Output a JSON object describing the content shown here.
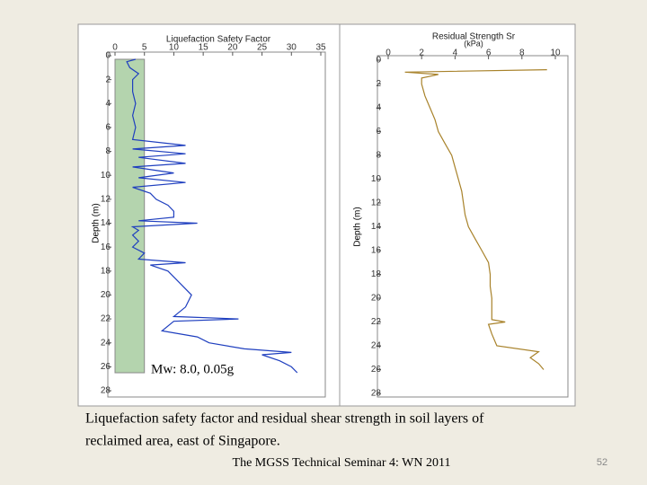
{
  "chart_data": [
    {
      "type": "line",
      "title": "Liquefaction Safety Factor",
      "y_label": "Depth (m)",
      "annotation": "Mw: 8.0, 0.05g",
      "color": "#1f3fbf",
      "band_x": [
        0,
        5
      ],
      "band_depth": [
        0.3,
        26.5
      ],
      "band_color": "#b4d4ae",
      "xlim": [
        0,
        35
      ],
      "xticks": [
        0,
        5,
        10,
        15,
        20,
        25,
        30,
        35
      ],
      "ylim": [
        0,
        28
      ],
      "yticks": [
        0,
        2,
        4,
        6,
        8,
        10,
        12,
        14,
        16,
        18,
        20,
        22,
        24,
        26,
        28
      ],
      "x": [
        3.5,
        2,
        2.5,
        4,
        3,
        3,
        3.5,
        3,
        3.5,
        3,
        12,
        3,
        12,
        4,
        12,
        3,
        10,
        4,
        12,
        3,
        6,
        7,
        9,
        10,
        10,
        4,
        14,
        3,
        4,
        3,
        4,
        3,
        5,
        4,
        12,
        6,
        9,
        11,
        13,
        12,
        10,
        21,
        10,
        8,
        14,
        16,
        22,
        30,
        25,
        28,
        30,
        31
      ],
      "values": [
        0.3,
        0.5,
        1,
        1.5,
        2,
        3,
        4,
        5,
        6,
        7,
        7.5,
        7.8,
        8.2,
        8.5,
        9,
        9.3,
        9.8,
        10.2,
        10.6,
        11,
        11.5,
        12,
        12.5,
        13,
        13.5,
        13.8,
        14,
        14.3,
        14.6,
        15,
        15.5,
        16,
        16.5,
        17,
        17.3,
        17.5,
        18,
        19,
        20,
        21,
        21.8,
        22,
        22.2,
        23,
        23.5,
        24,
        24.5,
        24.8,
        25,
        25.5,
        26,
        26.5
      ]
    },
    {
      "type": "line",
      "title": "Residual Strength Sr",
      "subtitle": "(kPa)",
      "y_label": "Depth (m)",
      "color": "#a8822a",
      "xlim": [
        0,
        10
      ],
      "xticks": [
        0,
        2,
        4,
        6,
        8,
        10
      ],
      "ylim": [
        0,
        28
      ],
      "yticks": [
        0,
        2,
        4,
        6,
        8,
        10,
        12,
        14,
        16,
        18,
        20,
        22,
        24,
        26,
        28
      ],
      "x": [
        9.5,
        1,
        3,
        2,
        2,
        2.2,
        2.5,
        2.8,
        3,
        3.4,
        3.8,
        4,
        4.2,
        4.4,
        4.5,
        4.6,
        4.8,
        5.2,
        5.6,
        6,
        6.1,
        6.1,
        6.2,
        6.2,
        6.2,
        7,
        6,
        6.2,
        6.5,
        9,
        8.5,
        9,
        9.3
      ],
      "values": [
        0.8,
        1,
        1.2,
        1.5,
        2,
        3,
        4,
        5,
        6,
        7,
        8,
        9,
        10,
        11,
        12,
        13,
        14,
        15,
        16,
        17,
        18,
        19,
        20,
        21,
        21.8,
        22,
        22.2,
        23,
        24,
        24.5,
        25,
        25.5,
        26
      ]
    }
  ],
  "caption": [
    "Liquefaction safety factor and residual shear strength in soil layers of",
    "reclaimed area, east of Singapore."
  ],
  "footer": "The MGSS Technical Seminar 4: WN 2011",
  "page_number": "52"
}
